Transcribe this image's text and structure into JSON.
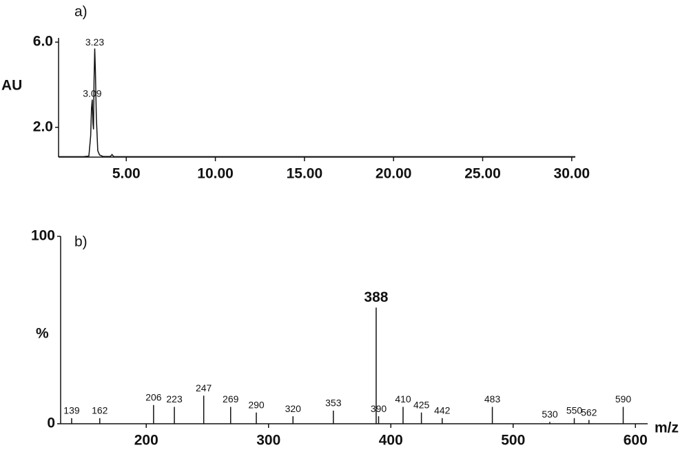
{
  "chart_data": [
    {
      "type": "line",
      "title": "a)",
      "y_label": "AU",
      "color": "#111111",
      "x": [
        1.2,
        2.6,
        2.9,
        3.0,
        3.05,
        3.09,
        3.13,
        3.16,
        3.19,
        3.23,
        3.27,
        3.32,
        3.4,
        3.5,
        3.7,
        4.1,
        4.2,
        4.3,
        6.0,
        30.2
      ],
      "values": [
        0.62,
        0.62,
        0.65,
        1.6,
        2.9,
        3.3,
        2.2,
        1.9,
        4.2,
        5.7,
        4.6,
        2.5,
        0.9,
        0.7,
        0.63,
        0.63,
        0.72,
        0.62,
        0.62,
        0.62
      ],
      "peaks": [
        3.09,
        3.23
      ],
      "xlim": [
        1.2,
        30.2
      ],
      "ylim": [
        0.6,
        6.2
      ],
      "xticks": [
        {
          "value": 5,
          "label": "5.00"
        },
        {
          "value": 10,
          "label": "10.00"
        },
        {
          "value": 15,
          "label": "15.00"
        },
        {
          "value": 20,
          "label": "20.00"
        },
        {
          "value": 25,
          "label": "25.00"
        },
        {
          "value": 30,
          "label": "30.00"
        }
      ],
      "yticks": [
        {
          "value": 2,
          "label": "2.0"
        },
        {
          "value": 6,
          "label": "6.0"
        }
      ]
    },
    {
      "type": "stick",
      "title": "b)",
      "y_label": "%",
      "x_label": "m/z",
      "color": "#111111",
      "x": [
        139,
        162,
        206,
        223,
        247,
        269,
        290,
        320,
        353,
        388,
        390,
        410,
        425,
        442,
        483,
        530,
        550,
        562,
        590
      ],
      "values": [
        3,
        3,
        10,
        9,
        15,
        9,
        6,
        4,
        7,
        62,
        4,
        9,
        6,
        3,
        9,
        1,
        3,
        2,
        9
      ],
      "xlim": [
        130,
        610
      ],
      "ylim": [
        0,
        100
      ],
      "xticks": [
        200,
        300,
        400,
        500,
        600
      ],
      "yticks": [
        0,
        100
      ]
    }
  ]
}
